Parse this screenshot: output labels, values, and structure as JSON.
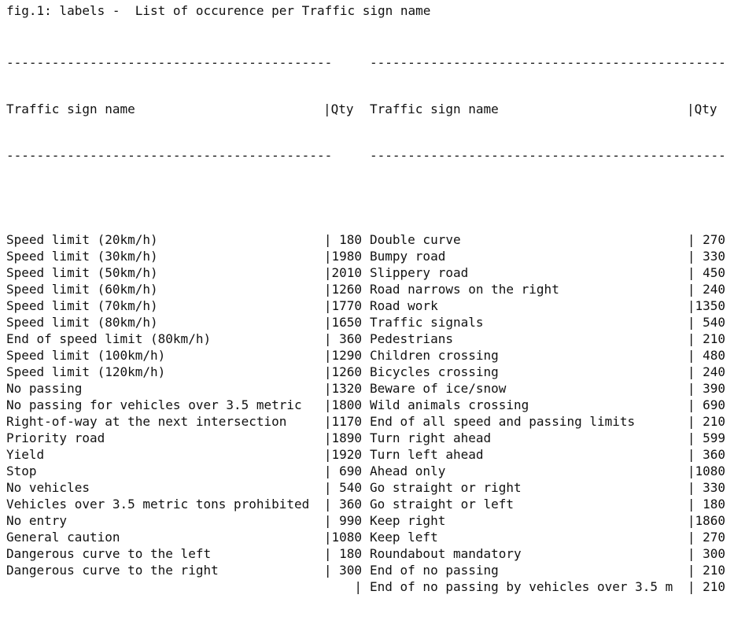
{
  "caption": "fig.1: labels -  List of occurence per Traffic sign name",
  "separator": "-----------------------------------------------------",
  "left_table": {
    "header_name": "Traffic sign name",
    "header_qty": "|Qty",
    "rows": [
      {
        "name": "Speed limit (20km/h)",
        "qty": "| 180"
      },
      {
        "name": "Speed limit (30km/h)",
        "qty": "|1980"
      },
      {
        "name": "Speed limit (50km/h)",
        "qty": "|2010"
      },
      {
        "name": "Speed limit (60km/h)",
        "qty": "|1260"
      },
      {
        "name": "Speed limit (70km/h)",
        "qty": "|1770"
      },
      {
        "name": "Speed limit (80km/h)",
        "qty": "|1650"
      },
      {
        "name": "End of speed limit (80km/h)",
        "qty": "| 360"
      },
      {
        "name": "Speed limit (100km/h)",
        "qty": "|1290"
      },
      {
        "name": "Speed limit (120km/h)",
        "qty": "|1260"
      },
      {
        "name": "No passing",
        "qty": "|1320"
      },
      {
        "name": "No passing for vehicles over 3.5 metric",
        "qty": "|1800"
      },
      {
        "name": "Right-of-way at the next intersection",
        "qty": "|1170"
      },
      {
        "name": "Priority road",
        "qty": "|1890"
      },
      {
        "name": "Yield",
        "qty": "|1920"
      },
      {
        "name": "Stop",
        "qty": "| 690"
      },
      {
        "name": "No vehicles",
        "qty": "| 540"
      },
      {
        "name": "Vehicles over 3.5 metric tons prohibited",
        "qty": "| 360"
      },
      {
        "name": "No entry",
        "qty": "| 990"
      },
      {
        "name": "General caution",
        "qty": "|1080"
      },
      {
        "name": "Dangerous curve to the left",
        "qty": "| 180"
      },
      {
        "name": "Dangerous curve to the right",
        "qty": "| 300"
      },
      {
        "name": "",
        "qty": "|"
      }
    ]
  },
  "right_table": {
    "header_name": "Traffic sign name",
    "header_qty": "|Qty",
    "rows": [
      {
        "name": "Double curve",
        "qty": "| 270"
      },
      {
        "name": "Bumpy road",
        "qty": "| 330"
      },
      {
        "name": "Slippery road",
        "qty": "| 450"
      },
      {
        "name": "Road narrows on the right",
        "qty": "| 240"
      },
      {
        "name": "Road work",
        "qty": "|1350"
      },
      {
        "name": "Traffic signals",
        "qty": "| 540"
      },
      {
        "name": "Pedestrians",
        "qty": "| 210"
      },
      {
        "name": "Children crossing",
        "qty": "| 480"
      },
      {
        "name": "Bicycles crossing",
        "qty": "| 240"
      },
      {
        "name": "Beware of ice/snow",
        "qty": "| 390"
      },
      {
        "name": "Wild animals crossing",
        "qty": "| 690"
      },
      {
        "name": "End of all speed and passing limits",
        "qty": "| 210"
      },
      {
        "name": "Turn right ahead",
        "qty": "| 599"
      },
      {
        "name": "Turn left ahead",
        "qty": "| 360"
      },
      {
        "name": "Ahead only",
        "qty": "|1080"
      },
      {
        "name": "Go straight or right",
        "qty": "| 330"
      },
      {
        "name": "Go straight or left",
        "qty": "| 180"
      },
      {
        "name": "Keep right",
        "qty": "|1860"
      },
      {
        "name": "Keep left",
        "qty": "| 270"
      },
      {
        "name": "Roundabout mandatory",
        "qty": "| 300"
      },
      {
        "name": "End of no passing",
        "qty": "| 210"
      },
      {
        "name": "End of no passing by vehicles over 3.5 m",
        "qty": "| 210"
      }
    ]
  }
}
